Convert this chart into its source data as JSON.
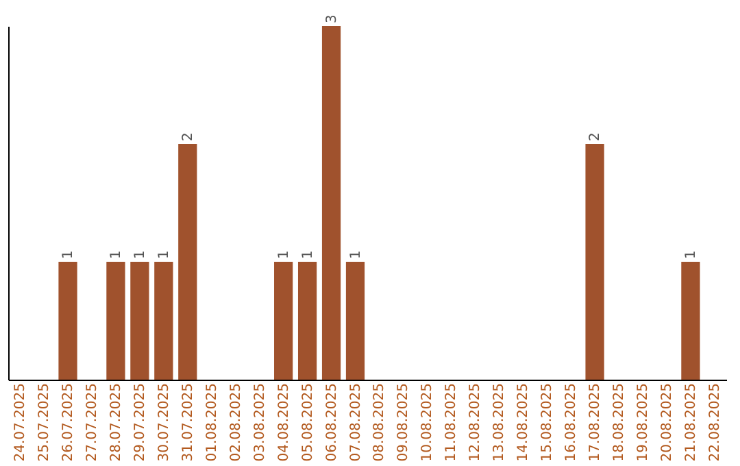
{
  "chart_data": {
    "type": "bar",
    "categories": [
      "24.07.2025",
      "25.07.2025",
      "26.07.2025",
      "27.07.2025",
      "28.07.2025",
      "29.07.2025",
      "30.07.2025",
      "31.07.2025",
      "01.08.2025",
      "02.08.2025",
      "03.08.2025",
      "04.08.2025",
      "05.08.2025",
      "06.08.2025",
      "07.08.2025",
      "08.08.2025",
      "09.08.2025",
      "10.08.2025",
      "11.08.2025",
      "12.08.2025",
      "13.08.2025",
      "14.08.2025",
      "15.08.2025",
      "16.08.2025",
      "17.08.2025",
      "18.08.2025",
      "19.08.2025",
      "20.08.2025",
      "21.08.2025",
      "22.08.2025"
    ],
    "values": [
      0,
      0,
      1,
      0,
      1,
      1,
      1,
      2,
      0,
      0,
      0,
      1,
      1,
      3,
      1,
      0,
      0,
      0,
      0,
      0,
      0,
      0,
      0,
      0,
      2,
      0,
      0,
      0,
      1,
      0
    ],
    "value_labels": [
      null,
      null,
      "1",
      null,
      "1",
      "1",
      "1",
      "2",
      null,
      null,
      null,
      "1",
      "1",
      "3",
      "1",
      null,
      null,
      null,
      null,
      null,
      null,
      null,
      null,
      null,
      "2",
      null,
      null,
      null,
      "1",
      null
    ],
    "color": "#a0522d",
    "tick_labels": "x",
    "grid": false
  }
}
